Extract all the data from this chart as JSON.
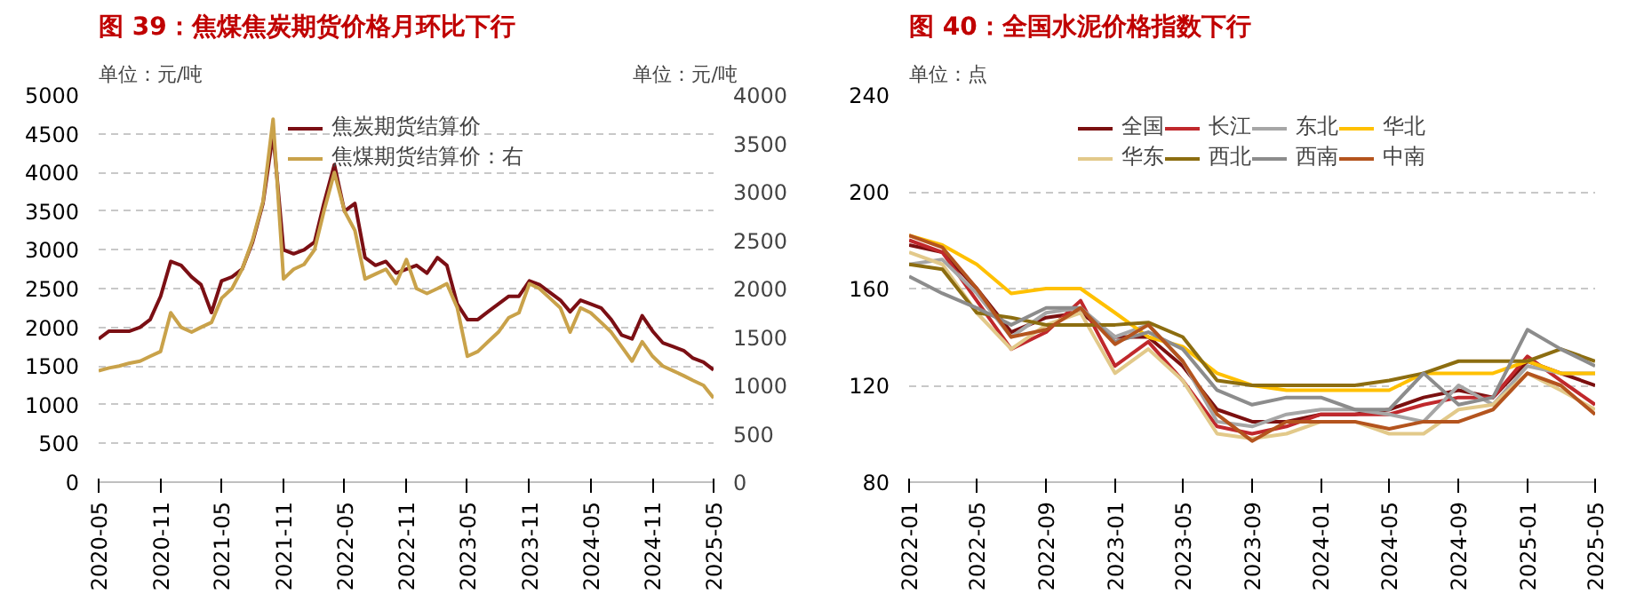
{
  "chart_data": [
    {
      "type": "line",
      "title": "图 39：焦煤焦炭期货价格月环比下行",
      "ylabel": "单位：元/吨",
      "y2label": "单位：元/吨",
      "x": [
        "2020-05",
        "2020-06",
        "2020-07",
        "2020-08",
        "2020-09",
        "2020-10",
        "2020-11",
        "2020-12",
        "2021-01",
        "2021-02",
        "2021-03",
        "2021-04",
        "2021-05",
        "2021-06",
        "2021-07",
        "2021-08",
        "2021-09",
        "2021-10",
        "2021-11",
        "2021-12",
        "2022-01",
        "2022-02",
        "2022-03",
        "2022-04",
        "2022-05",
        "2022-06",
        "2022-07",
        "2022-08",
        "2022-09",
        "2022-10",
        "2022-11",
        "2022-12",
        "2023-01",
        "2023-02",
        "2023-03",
        "2023-04",
        "2023-05",
        "2023-06",
        "2023-07",
        "2023-08",
        "2023-09",
        "2023-10",
        "2023-11",
        "2023-12",
        "2024-01",
        "2024-02",
        "2024-03",
        "2024-04",
        "2024-05",
        "2024-06",
        "2024-07",
        "2024-08",
        "2024-09",
        "2024-10",
        "2024-11",
        "2024-12",
        "2025-01",
        "2025-02",
        "2025-03",
        "2025-04",
        "2025-05"
      ],
      "series": [
        {
          "name": "焦炭期货结算价",
          "color": "#7b0f14",
          "values": [
            1850,
            1950,
            1950,
            1950,
            2000,
            2100,
            2400,
            2850,
            2800,
            2650,
            2550,
            2190,
            2600,
            2650,
            2750,
            3100,
            3600,
            4500,
            3000,
            2950,
            3000,
            3100,
            3600,
            4100,
            3500,
            3600,
            2900,
            2800,
            2850,
            2700,
            2750,
            2800,
            2700,
            2900,
            2800,
            2300,
            2100,
            2100,
            2200,
            2300,
            2400,
            2400,
            2600,
            2550,
            2450,
            2350,
            2200,
            2350,
            2300,
            2250,
            2100,
            1900,
            1850,
            2150,
            1950,
            1800,
            1750,
            1700,
            1600,
            1550,
            1450
          ]
        },
        {
          "name": "焦煤期货结算价：右",
          "color": "#c9a24a",
          "axis": "y2",
          "values": [
            1150,
            1180,
            1200,
            1230,
            1250,
            1300,
            1350,
            1750,
            1600,
            1550,
            1600,
            1650,
            1900,
            2000,
            2200,
            2500,
            2900,
            3750,
            2100,
            2200,
            2250,
            2400,
            2800,
            3200,
            2800,
            2600,
            2100,
            2150,
            2200,
            2050,
            2300,
            2000,
            1950,
            2000,
            2050,
            1800,
            1300,
            1350,
            1450,
            1550,
            1700,
            1750,
            2050,
            2000,
            1900,
            1800,
            1550,
            1800,
            1750,
            1650,
            1550,
            1400,
            1250,
            1450,
            1300,
            1200,
            1150,
            1100,
            1050,
            1000,
            870
          ]
        }
      ],
      "xlim": [
        "2020-05",
        "2025-05"
      ],
      "xticks": [
        "2020-05",
        "2020-11",
        "2021-05",
        "2021-11",
        "2022-05",
        "2022-11",
        "2023-05",
        "2023-11",
        "2024-05",
        "2024-11",
        "2025-05"
      ],
      "ylim": [
        0,
        5000
      ],
      "yticks": [
        0,
        500,
        1000,
        1500,
        2000,
        2500,
        3000,
        3500,
        4000,
        4500,
        5000
      ],
      "y2lim": [
        0,
        4000
      ],
      "y2ticks": [
        0,
        500,
        1000,
        1500,
        2000,
        2500,
        3000,
        3500,
        4000
      ],
      "grid": "y",
      "legend": "top"
    },
    {
      "type": "line",
      "title": "图 40：全国水泥价格指数下行",
      "ylabel": "单位：点",
      "x": [
        "2022-01",
        "2022-03",
        "2022-05",
        "2022-07",
        "2022-09",
        "2022-11",
        "2023-01",
        "2023-03",
        "2023-05",
        "2023-07",
        "2023-09",
        "2023-11",
        "2024-01",
        "2024-03",
        "2024-05",
        "2024-07",
        "2024-09",
        "2024-11",
        "2025-01",
        "2025-03",
        "2025-05"
      ],
      "series": [
        {
          "name": "全国",
          "color": "#7b1010",
          "values": [
            178,
            175,
            160,
            142,
            148,
            150,
            140,
            140,
            128,
            110,
            105,
            105,
            108,
            108,
            110,
            115,
            118,
            115,
            130,
            125,
            120
          ]
        },
        {
          "name": "长江",
          "color": "#c0282c",
          "values": [
            180,
            175,
            155,
            135,
            142,
            155,
            128,
            138,
            122,
            103,
            100,
            103,
            108,
            108,
            108,
            112,
            115,
            115,
            132,
            122,
            112
          ]
        },
        {
          "name": "东北",
          "color": "#a6a6a6",
          "values": [
            170,
            172,
            158,
            140,
            150,
            152,
            140,
            145,
            130,
            105,
            103,
            108,
            110,
            110,
            108,
            105,
            120,
            112,
            128,
            125,
            125
          ]
        },
        {
          "name": "华北",
          "color": "#ffc000",
          "values": [
            182,
            178,
            170,
            158,
            160,
            160,
            150,
            140,
            136,
            125,
            120,
            118,
            118,
            118,
            118,
            125,
            125,
            125,
            130,
            125,
            125
          ]
        },
        {
          "name": "华东",
          "color": "#e2c98a",
          "values": [
            175,
            170,
            150,
            135,
            145,
            150,
            125,
            135,
            122,
            100,
            98,
            100,
            105,
            105,
            100,
            100,
            110,
            112,
            125,
            118,
            110
          ]
        },
        {
          "name": "西北",
          "color": "#8c6d10",
          "values": [
            170,
            168,
            150,
            148,
            145,
            145,
            145,
            146,
            140,
            122,
            120,
            120,
            120,
            120,
            122,
            125,
            130,
            130,
            130,
            135,
            130
          ]
        },
        {
          "name": "西南",
          "color": "#8c8c8c",
          "values": [
            165,
            158,
            152,
            145,
            152,
            152,
            138,
            142,
            135,
            118,
            112,
            115,
            115,
            110,
            110,
            125,
            112,
            115,
            143,
            135,
            128
          ]
        },
        {
          "name": "中南",
          "color": "#b4541e",
          "values": [
            182,
            177,
            160,
            140,
            143,
            152,
            137,
            145,
            130,
            108,
            97,
            105,
            105,
            105,
            102,
            105,
            105,
            110,
            125,
            120,
            108
          ]
        }
      ],
      "xlim": [
        "2022-01",
        "2025-05"
      ],
      "xticks": [
        "2022-01",
        "2022-05",
        "2022-09",
        "2023-01",
        "2023-05",
        "2023-09",
        "2024-01",
        "2024-05",
        "2024-09",
        "2025-01",
        "2025-05"
      ],
      "ylim": [
        80,
        240
      ],
      "yticks": [
        80,
        120,
        160,
        200,
        240
      ],
      "grid": "y",
      "legend": "top"
    }
  ]
}
